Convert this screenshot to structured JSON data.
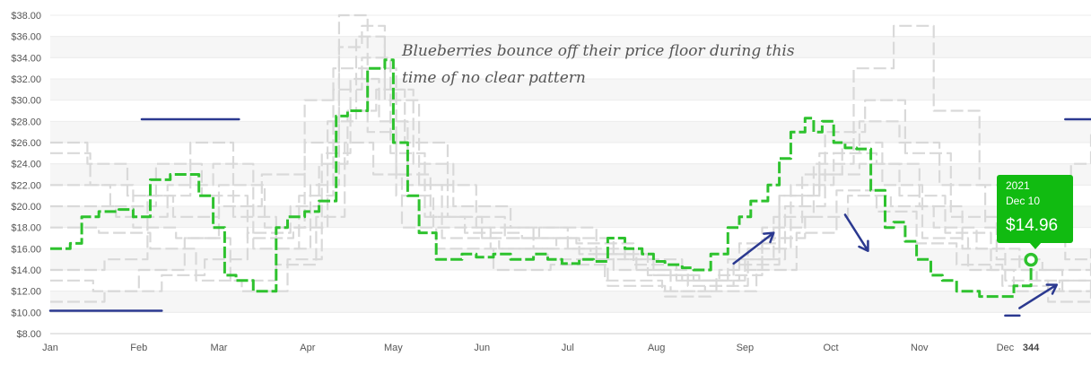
{
  "chart_data": {
    "type": "line",
    "title": "",
    "xlabel": "",
    "ylabel": "",
    "x_tick_labels": [
      "Jan",
      "Feb",
      "Mar",
      "Apr",
      "May",
      "Jun",
      "Jul",
      "Aug",
      "Sep",
      "Oct",
      "Nov",
      "Dec"
    ],
    "x_cursor_label": "344",
    "y_tick_labels": [
      "$8.00",
      "$10.00",
      "$12.00",
      "$14.00",
      "$16.00",
      "$18.00",
      "$20.00",
      "$22.00",
      "$24.00",
      "$26.00",
      "$28.00",
      "$30.00",
      "$32.00",
      "$34.00",
      "$36.00",
      "$38.00"
    ],
    "ylim": [
      8,
      38
    ],
    "xlim_day_of_year": [
      1,
      365
    ],
    "grid": "horizontal bands",
    "colors": {
      "highlight": "#2ec22e",
      "background_series": "#d9d9d9",
      "marks": "#2b3990",
      "tooltip": "#11bb11"
    },
    "annotation": {
      "line1": "Blueberries bounce off their price floor during this",
      "line2": "time of no clear pattern"
    },
    "tooltip": {
      "year": "2021",
      "date": "Dec 10",
      "price": "$14.96"
    },
    "highlight_series": {
      "name": "2021",
      "x_day": [
        1,
        8,
        12,
        18,
        25,
        30,
        36,
        43,
        49,
        53,
        58,
        62,
        66,
        72,
        76,
        80,
        84,
        90,
        95,
        101,
        105,
        112,
        118,
        121,
        126,
        130,
        136,
        145,
        150,
        156,
        162,
        170,
        175,
        180,
        186,
        191,
        196,
        202,
        208,
        212,
        216,
        222,
        226,
        232,
        238,
        242,
        246,
        252,
        256,
        260,
        265,
        268,
        271,
        275,
        279,
        283,
        288,
        293,
        296,
        300,
        304,
        309,
        313,
        318,
        326,
        332,
        338,
        344
      ],
      "y": [
        16.0,
        16.5,
        19.0,
        19.5,
        19.7,
        19.0,
        22.5,
        23.0,
        23.0,
        21.0,
        18.0,
        13.5,
        13.0,
        12.0,
        12.0,
        18.0,
        19.0,
        19.5,
        20.5,
        28.5,
        29.0,
        33.0,
        33.8,
        26.0,
        21.0,
        17.5,
        15.0,
        15.5,
        15.2,
        15.5,
        15.0,
        15.5,
        15.0,
        14.6,
        15.0,
        14.8,
        17.0,
        16.0,
        15.5,
        14.8,
        14.5,
        14.2,
        14.0,
        15.5,
        18.0,
        19.0,
        20.5,
        22.0,
        24.5,
        27.0,
        28.3,
        27.0,
        28.0,
        26.0,
        25.5,
        25.4,
        21.5,
        18.0,
        18.5,
        16.7,
        15.0,
        13.5,
        13.0,
        12.0,
        11.5,
        11.5,
        12.5,
        14.96
      ]
    },
    "background_series": [
      {
        "x_day": [
          1,
          20,
          40,
          55,
          70,
          85,
          95,
          105,
          115,
          125,
          140,
          160,
          185,
          205,
          220,
          235,
          250,
          265,
          280,
          295,
          310,
          325,
          340,
          355,
          365
        ],
        "y": [
          11.0,
          12.0,
          13.5,
          15.0,
          17.5,
          20.0,
          24.0,
          29.0,
          31.0,
          26.0,
          19.0,
          17.0,
          16.5,
          14.5,
          13.0,
          14.0,
          17.0,
          19.0,
          21.0,
          20.0,
          18.0,
          16.0,
          14.0,
          12.0,
          11.0
        ]
      },
      {
        "x_day": [
          1,
          15,
          30,
          45,
          60,
          75,
          90,
          100,
          112,
          122,
          135,
          155,
          175,
          195,
          215,
          230,
          245,
          260,
          275,
          290,
          305,
          320,
          335,
          350,
          365
        ],
        "y": [
          25.0,
          22.0,
          18.0,
          17.0,
          20.0,
          23.0,
          30.0,
          33.0,
          27.0,
          21.0,
          18.0,
          16.0,
          15.0,
          13.0,
          12.0,
          12.5,
          16.0,
          22.0,
          25.0,
          24.0,
          20.0,
          16.0,
          13.0,
          12.0,
          13.0
        ]
      },
      {
        "x_day": [
          1,
          20,
          35,
          50,
          65,
          80,
          92,
          102,
          110,
          118,
          130,
          150,
          170,
          190,
          210,
          228,
          244,
          258,
          272,
          286,
          300,
          316,
          332,
          348,
          365
        ],
        "y": [
          14.0,
          15.0,
          21.0,
          26.0,
          19.0,
          16.0,
          22.0,
          35.0,
          37.0,
          30.0,
          22.0,
          18.0,
          16.0,
          15.5,
          13.5,
          13.0,
          15.0,
          20.0,
          27.0,
          30.0,
          25.0,
          19.0,
          15.0,
          14.0,
          15.0
        ]
      },
      {
        "x_day": [
          1,
          18,
          36,
          52,
          68,
          84,
          96,
          106,
          116,
          126,
          138,
          158,
          178,
          198,
          218,
          234,
          250,
          264,
          278,
          292,
          306,
          322,
          338,
          354,
          365
        ],
        "y": [
          18.0,
          17.5,
          16.0,
          13.0,
          12.0,
          15.0,
          25.0,
          32.0,
          28.0,
          22.0,
          17.0,
          16.0,
          17.0,
          14.0,
          12.0,
          13.5,
          18.0,
          23.0,
          26.0,
          22.0,
          17.0,
          14.0,
          12.0,
          13.0,
          12.0
        ]
      },
      {
        "x_day": [
          1,
          22,
          38,
          54,
          70,
          86,
          98,
          108,
          118,
          128,
          142,
          162,
          182,
          202,
          222,
          238,
          254,
          268,
          282,
          296,
          310,
          326,
          342,
          356,
          365
        ],
        "y": [
          22.0,
          20.0,
          24.0,
          21.0,
          17.0,
          18.0,
          28.0,
          36.0,
          31.0,
          24.0,
          20.0,
          18.0,
          16.0,
          15.0,
          13.0,
          15.0,
          19.0,
          24.0,
          33.0,
          37.0,
          29.0,
          22.0,
          17.0,
          15.0,
          16.0
        ]
      },
      {
        "x_day": [
          1,
          16,
          32,
          48,
          64,
          80,
          94,
          104,
          114,
          124,
          136,
          156,
          176,
          196,
          216,
          232,
          248,
          262,
          276,
          290,
          304,
          318,
          334,
          350,
          365
        ],
        "y": [
          13.0,
          12.0,
          14.0,
          17.0,
          13.0,
          14.5,
          19.0,
          26.0,
          23.0,
          18.0,
          16.0,
          14.0,
          14.5,
          12.5,
          11.5,
          12.0,
          14.0,
          17.5,
          21.5,
          19.5,
          16.5,
          14.5,
          12.5,
          11.0,
          11.5
        ]
      },
      {
        "x_day": [
          1,
          24,
          42,
          58,
          72,
          88,
          100,
          110,
          120,
          132,
          146,
          166,
          186,
          206,
          224,
          240,
          256,
          270,
          284,
          298,
          312,
          328,
          344,
          358,
          365
        ],
        "y": [
          20.0,
          19.0,
          22.0,
          24.0,
          16.0,
          21.0,
          31.0,
          34.0,
          25.0,
          19.0,
          17.5,
          17.0,
          15.5,
          14.0,
          12.5,
          14.5,
          21.0,
          25.0,
          28.0,
          26.0,
          22.0,
          18.0,
          21.0,
          24.0,
          27.0
        ]
      },
      {
        "x_day": [
          1,
          14,
          28,
          44,
          60,
          76,
          90,
          102,
          112,
          122,
          134,
          152,
          172,
          192,
          212,
          226,
          242,
          256,
          270,
          284,
          298,
          314,
          330,
          346,
          365
        ],
        "y": [
          26.0,
          24.0,
          21.0,
          19.0,
          22.0,
          18.0,
          26.0,
          38.0,
          33.0,
          23.0,
          19.0,
          17.0,
          18.0,
          15.0,
          13.5,
          13.0,
          16.5,
          21.0,
          23.0,
          24.0,
          21.0,
          17.5,
          14.0,
          13.0,
          14.0
        ]
      }
    ]
  }
}
